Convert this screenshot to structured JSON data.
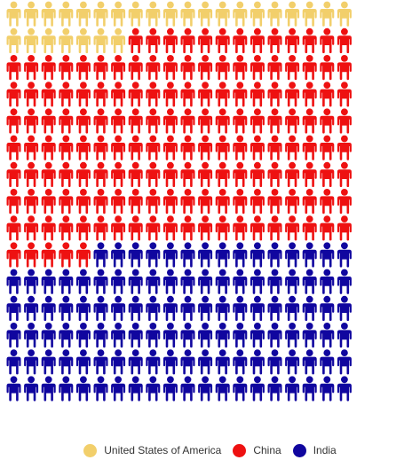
{
  "chart_data": {
    "type": "pictogram",
    "icon": "person-icon",
    "unit_count": 300,
    "grid": {
      "rows": 15,
      "columns": 20
    },
    "legend_position": "bottom-center",
    "series": [
      {
        "name": "United States of America",
        "value": 27,
        "color": "#F2CF6B"
      },
      {
        "name": "China",
        "value": 158,
        "color": "#EE1111"
      },
      {
        "name": "India",
        "value": 115,
        "color": "#10069F"
      }
    ]
  }
}
